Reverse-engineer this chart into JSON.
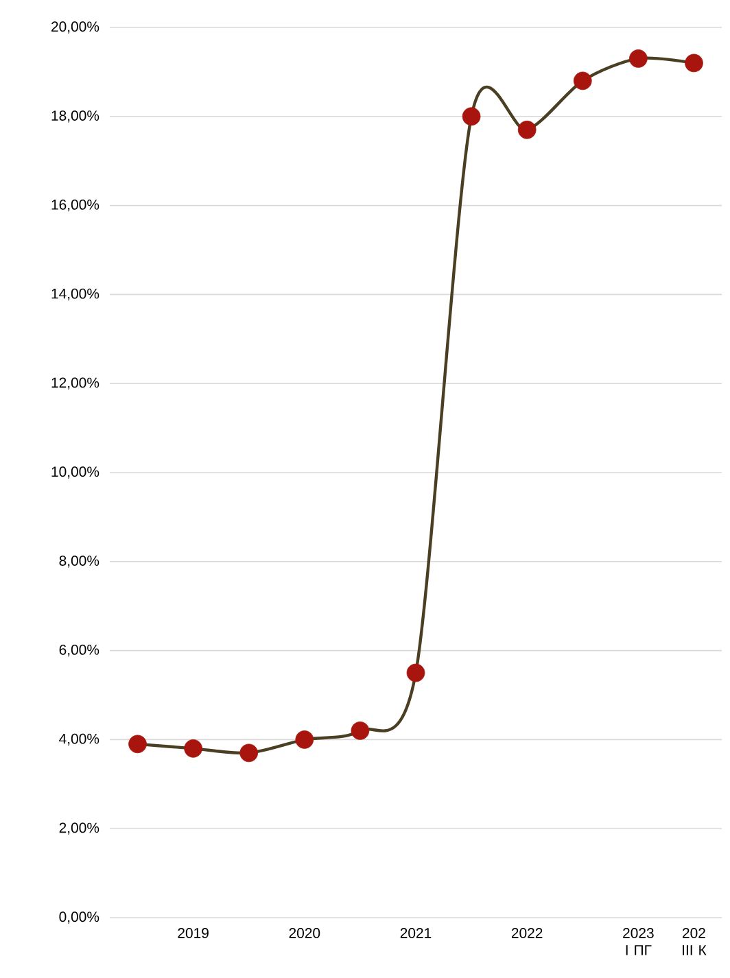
{
  "chart_data": {
    "type": "line",
    "categories": [
      null,
      "2019",
      null,
      "2020",
      null,
      "2021",
      null,
      "2022",
      null,
      "2023 I ПГ",
      "202 III К"
    ],
    "series": [
      {
        "color": "#4a3f22",
        "colors": [
          "#a8150e",
          "#a8150e",
          "#a8150e",
          "#a8150e",
          "#a8150e",
          "#a8150e",
          "#a8150e",
          "#a8150e",
          "#a8150e",
          "#a8150e",
          "#a8150e"
        ],
        "values": [
          3.9,
          3.8,
          3.7,
          4.0,
          4.2,
          5.5,
          18.0,
          17.7,
          18.8,
          19.3,
          19.2
        ]
      }
    ],
    "ylim": [
      0,
      20
    ],
    "yticks": [
      {
        "value": 0,
        "label": "0,00%"
      },
      {
        "value": 2,
        "label": "2,00%"
      },
      {
        "value": 4,
        "label": "4,00%"
      },
      {
        "value": 6,
        "label": "6,00%"
      },
      {
        "value": 8,
        "label": "8,00%"
      },
      {
        "value": 10,
        "label": "10,00%"
      },
      {
        "value": 12,
        "label": "12,00%"
      },
      {
        "value": 14,
        "label": "14,00%"
      },
      {
        "value": 16,
        "label": "16,00%"
      },
      {
        "value": 18,
        "label": "18,00%"
      },
      {
        "value": 20,
        "label": "20,00%"
      }
    ],
    "grid": "y",
    "marker": "circle",
    "line_style": "solid"
  }
}
